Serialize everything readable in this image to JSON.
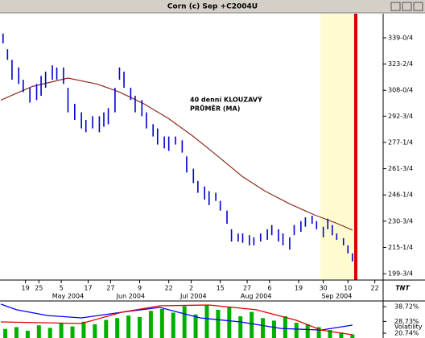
{
  "chart_data": [
    {
      "type": "hilo",
      "title": "Corn (c) Sep +C2004U",
      "color": "#0000cc",
      "x": [
        "2004-04-09",
        "2004-04-11",
        "2004-04-13",
        "2004-04-16",
        "2004-04-18",
        "2004-04-21",
        "2004-04-24",
        "2004-04-26",
        "2004-04-28",
        "2004-05-01",
        "2004-05-03",
        "2004-05-06",
        "2004-05-08",
        "2004-05-11",
        "2004-05-14",
        "2004-05-16",
        "2004-05-19",
        "2004-05-22",
        "2004-05-24",
        "2004-05-26",
        "2004-05-29",
        "2004-05-31",
        "2004-06-02",
        "2004-06-05",
        "2004-06-07",
        "2004-06-10",
        "2004-06-12",
        "2004-06-15",
        "2004-06-17",
        "2004-06-20",
        "2004-06-22",
        "2004-06-25",
        "2004-06-28",
        "2004-06-30",
        "2004-07-03",
        "2004-07-05",
        "2004-07-08",
        "2004-07-10",
        "2004-07-13",
        "2004-07-15",
        "2004-07-18",
        "2004-07-20",
        "2004-07-23",
        "2004-07-25",
        "2004-07-28",
        "2004-07-30",
        "2004-08-02",
        "2004-08-05",
        "2004-08-07",
        "2004-08-10",
        "2004-08-12",
        "2004-08-15",
        "2004-08-17",
        "2004-08-20",
        "2004-08-22",
        "2004-08-25",
        "2004-08-27",
        "2004-08-30",
        "2004-09-01",
        "2004-09-03",
        "2004-09-05",
        "2004-09-08",
        "2004-09-10",
        "2004-09-12"
      ],
      "high": [
        341.5,
        332.25,
        326,
        321.5,
        314.25,
        309.5,
        311.75,
        316.5,
        319,
        322.75,
        321.5,
        321.5,
        309.5,
        300,
        295,
        290.5,
        292.75,
        292.75,
        295,
        297.5,
        309.5,
        321.5,
        319,
        309.5,
        304.75,
        302.25,
        295,
        288,
        285.5,
        280.75,
        280.75,
        280.75,
        278.5,
        269,
        261.75,
        254.5,
        251.25,
        248.5,
        247.5,
        242.75,
        237,
        226,
        223.5,
        223.5,
        222.5,
        221.25,
        223.5,
        226,
        228.5,
        226,
        223.5,
        221.25,
        228.5,
        230.75,
        233,
        234,
        230.75,
        227.5,
        232.25,
        228.5,
        223.5,
        220.75,
        216.5,
        211.75
      ],
      "low": [
        335.75,
        326,
        314.25,
        311.75,
        307,
        300.75,
        302.25,
        304.75,
        309.5,
        314.25,
        314.25,
        311.75,
        295,
        290.5,
        285.5,
        283.25,
        285.5,
        283.25,
        286.5,
        288,
        295,
        314.25,
        309.5,
        302.25,
        295,
        292.75,
        285.5,
        280.75,
        276,
        273.75,
        272.25,
        276,
        271.25,
        259.5,
        253.25,
        247.5,
        243.5,
        240.25,
        242.75,
        237,
        229.25,
        218.75,
        218.75,
        218,
        216.5,
        216.5,
        218.75,
        219.75,
        222.5,
        218.75,
        216.5,
        214,
        222.5,
        224.5,
        227.5,
        229.25,
        226,
        221.25,
        226,
        222.5,
        219.75,
        216.5,
        211.75,
        207
      ],
      "ma": {
        "color": "#8b2d1e",
        "x": [
          "2004-04-08",
          "2004-04-22",
          "2004-05-08",
          "2004-05-21",
          "2004-05-31",
          "2004-06-11",
          "2004-06-22",
          "2004-07-03",
          "2004-07-14",
          "2004-07-25",
          "2004-08-04",
          "2004-08-15",
          "2004-08-26",
          "2004-09-05",
          "2004-09-12"
        ],
        "values": [
          302.25,
          310.25,
          315.25,
          311.75,
          307,
          300,
          291.25,
          280.75,
          269,
          257,
          248.5,
          241,
          234.5,
          229.5,
          225.5
        ]
      },
      "annotation": [
        "40 denní KLOUZAVÝ",
        "PRŮMĚR (MA)"
      ],
      "annotation_color": "#b0602a",
      "xlim": [
        "2004-04-08",
        "2004-09-25"
      ],
      "xticks": [
        {
          "value": "2004-04-19",
          "label": "19"
        },
        {
          "value": "2004-04-25",
          "label": "25"
        },
        {
          "value": "2004-05-05",
          "label": "5"
        },
        {
          "value": "2004-05-17",
          "label": "17"
        },
        {
          "value": "2004-05-27",
          "label": "27"
        },
        {
          "value": "2004-06-09",
          "label": "9"
        },
        {
          "value": "2004-06-22",
          "label": "22"
        },
        {
          "value": "2004-07-02",
          "label": "2"
        },
        {
          "value": "2004-07-15",
          "label": "15"
        },
        {
          "value": "2004-07-27",
          "label": "27"
        },
        {
          "value": "2004-08-06",
          "label": "6"
        },
        {
          "value": "2004-08-19",
          "label": "19"
        },
        {
          "value": "2004-08-30",
          "label": "30"
        },
        {
          "value": "2004-09-10",
          "label": "10"
        },
        {
          "value": "2004-09-22",
          "label": "22"
        }
      ],
      "month_labels": [
        {
          "value": "2004-05-08",
          "label": "May 2004"
        },
        {
          "value": "2004-06-05",
          "label": "Jun 2004"
        },
        {
          "value": "2004-07-03",
          "label": "Jul 2004"
        },
        {
          "value": "2004-07-31",
          "label": "Aug 2004"
        },
        {
          "value": "2004-09-05",
          "label": "Sep 2004"
        }
      ],
      "ylim": [
        196,
        353.25
      ],
      "yticks": [
        {
          "value": 339,
          "label": "339-0/4"
        },
        {
          "value": 323.5,
          "label": "323-2/4"
        },
        {
          "value": 308,
          "label": "308-0/4"
        },
        {
          "value": 292.75,
          "label": "292-3/4"
        },
        {
          "value": 277.25,
          "label": "277-1/4"
        },
        {
          "value": 261.75,
          "label": "261-3/4"
        },
        {
          "value": 246.25,
          "label": "246-1/4"
        },
        {
          "value": 230.75,
          "label": "230-3/4"
        },
        {
          "value": 215.25,
          "label": "215-1/4"
        },
        {
          "value": 199.75,
          "label": "199-3/4"
        }
      ],
      "logo": "TNT"
    },
    {
      "type": "volatility",
      "series": [
        {
          "name": "Volatility",
          "color": "#0000ff",
          "x": [
            "2004-04-08",
            "2004-04-15",
            "2004-04-29",
            "2004-05-14",
            "2004-06-01",
            "2004-06-18",
            "2004-07-06",
            "2004-07-24",
            "2004-08-11",
            "2004-08-29",
            "2004-09-12"
          ],
          "values": [
            40.4,
            36.6,
            32.7,
            31.1,
            34.9,
            38.2,
            31.1,
            28.4,
            24,
            22.9,
            26.2
          ]
        },
        {
          "color": "#e00000",
          "x": [
            "2004-04-08",
            "2004-05-14",
            "2004-06-01",
            "2004-06-18",
            "2004-07-10",
            "2004-07-31",
            "2004-08-18",
            "2004-08-29",
            "2004-09-12"
          ],
          "values": [
            28.4,
            27.3,
            34.9,
            39.3,
            39.8,
            36.6,
            29.5,
            22.9,
            19.7
          ]
        }
      ],
      "volume": {
        "color": "#00b000",
        "x": [
          "2004-04-10",
          "2004-04-15",
          "2004-04-20",
          "2004-04-25",
          "2004-04-30",
          "2004-05-05",
          "2004-05-10",
          "2004-05-15",
          "2004-05-20",
          "2004-05-25",
          "2004-05-30",
          "2004-06-04",
          "2004-06-09",
          "2004-06-14",
          "2004-06-19",
          "2004-06-24",
          "2004-06-29",
          "2004-07-04",
          "2004-07-09",
          "2004-07-14",
          "2004-07-19",
          "2004-07-24",
          "2004-07-29",
          "2004-08-03",
          "2004-08-08",
          "2004-08-13",
          "2004-08-18",
          "2004-08-23",
          "2004-08-28",
          "2004-09-02",
          "2004-09-07",
          "2004-09-12"
        ],
        "values": [
          25,
          30,
          20,
          35,
          28,
          40,
          32,
          45,
          38,
          50,
          55,
          62,
          58,
          75,
          80,
          70,
          88,
          65,
          92,
          78,
          85,
          60,
          72,
          55,
          48,
          60,
          42,
          38,
          30,
          22,
          15,
          10
        ]
      },
      "xlim": [
        "2004-04-08",
        "2004-09-25"
      ],
      "ylim": [
        17.5,
        42
      ],
      "yticks": [
        {
          "value": 38.72,
          "label": "38.72%"
        },
        {
          "value": 28.73,
          "label": "28.73%"
        },
        {
          "value": 20.74,
          "label": "20.74%"
        }
      ],
      "y2lim": [
        0,
        100
      ]
    }
  ]
}
